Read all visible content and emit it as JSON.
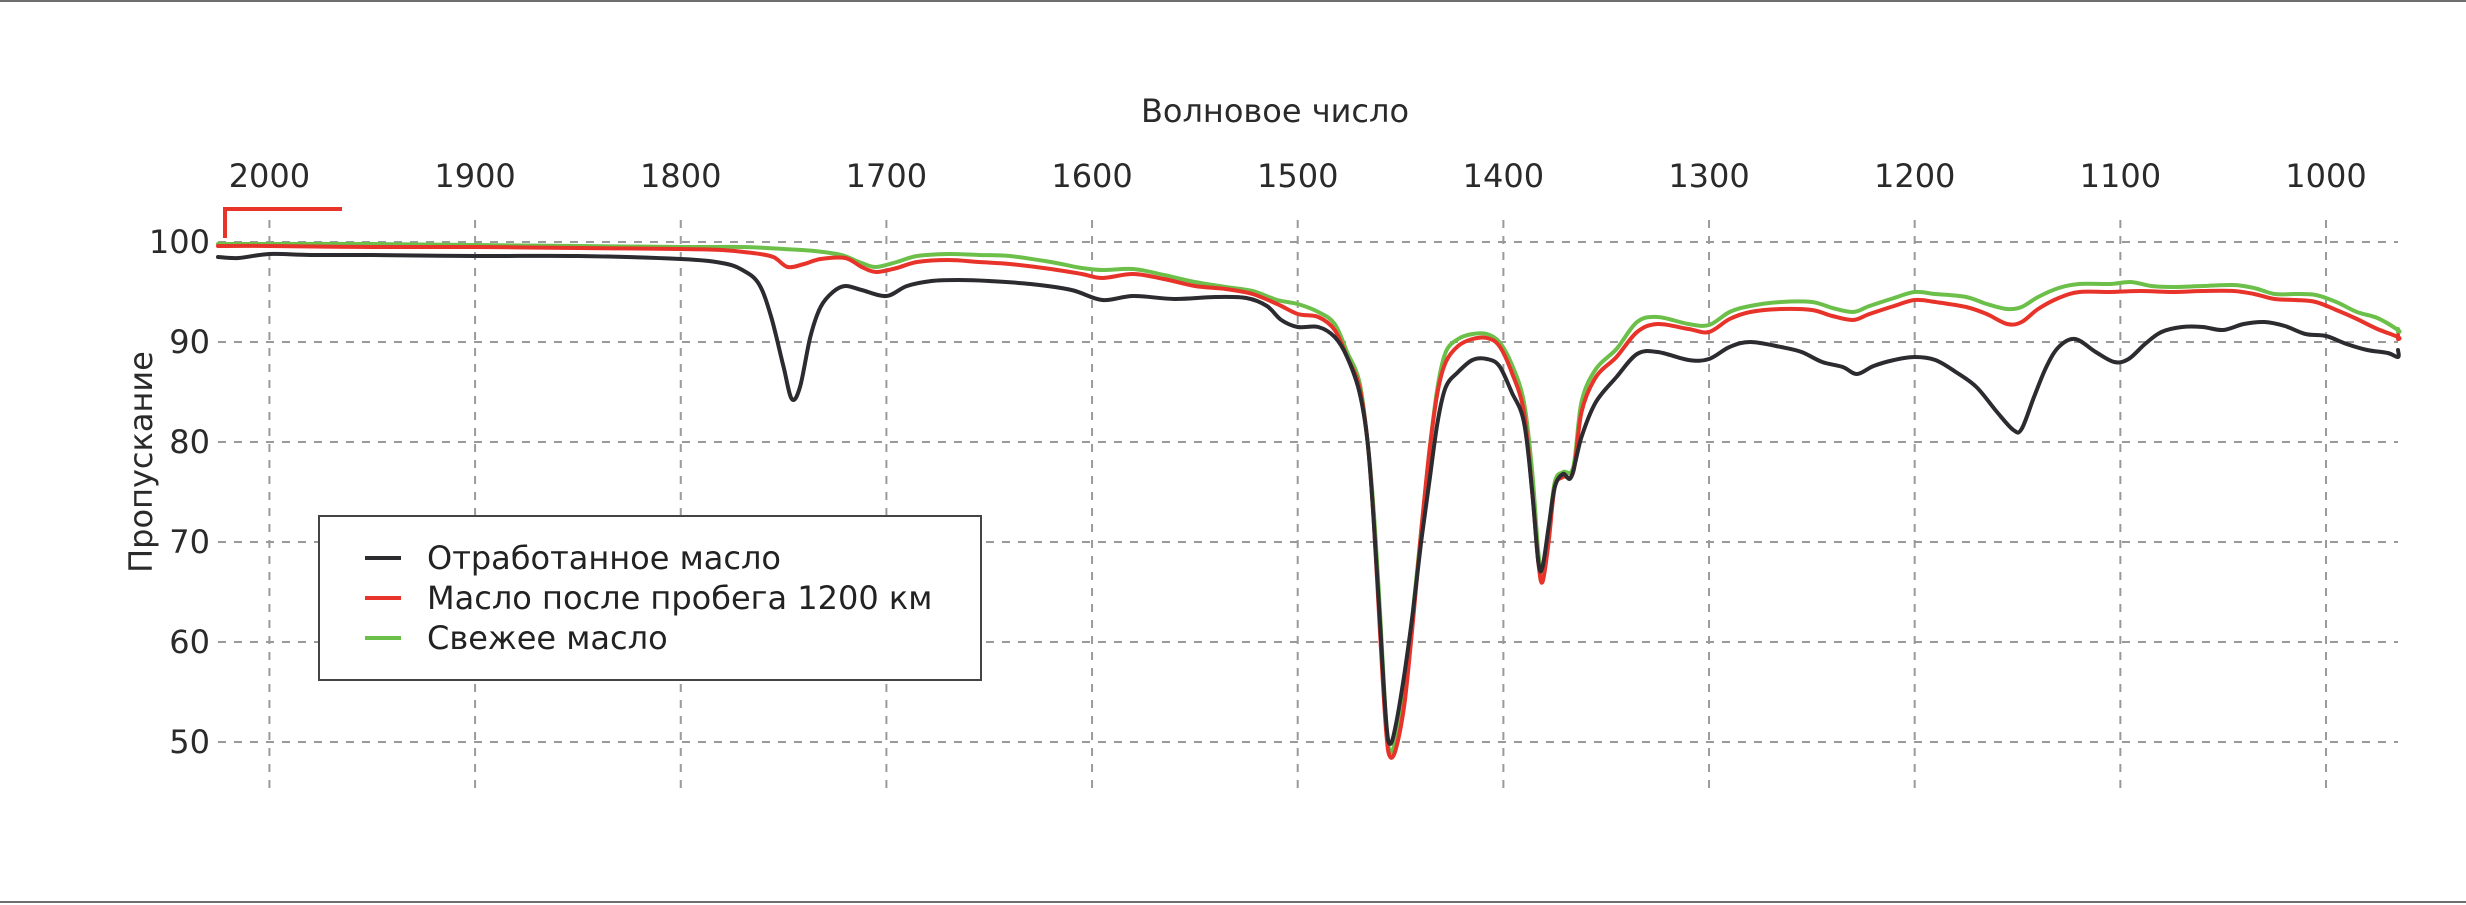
{
  "chart_data": {
    "type": "line",
    "title": "",
    "xlabel": "Волновое число",
    "ylabel": "Пропускание",
    "x_axis_position": "top",
    "x_reversed": true,
    "xlim": [
      2025,
      965
    ],
    "ylim": [
      45,
      105
    ],
    "grid": true,
    "grid_style": "dashed",
    "x_ticks": [
      2000,
      1900,
      1800,
      1700,
      1600,
      1500,
      1400,
      1300,
      1200,
      1100,
      1000
    ],
    "y_ticks": [
      50,
      60,
      70,
      80,
      90,
      100
    ],
    "legend_position": "lower-left",
    "series": [
      {
        "name": "Отработанное масло",
        "color": "#2b2b30",
        "points": [
          [
            2025,
            98.5
          ],
          [
            2015,
            98.4
          ],
          [
            2000,
            98.8
          ],
          [
            1980,
            98.7
          ],
          [
            1950,
            98.7
          ],
          [
            1900,
            98.6
          ],
          [
            1850,
            98.6
          ],
          [
            1800,
            98.3
          ],
          [
            1780,
            97.9
          ],
          [
            1770,
            97.2
          ],
          [
            1762,
            95.8
          ],
          [
            1756,
            92.5
          ],
          [
            1750,
            87.5
          ],
          [
            1746,
            84.3
          ],
          [
            1742,
            85.5
          ],
          [
            1737,
            90.5
          ],
          [
            1732,
            93.5
          ],
          [
            1726,
            95
          ],
          [
            1720,
            95.6
          ],
          [
            1712,
            95.2
          ],
          [
            1700,
            94.6
          ],
          [
            1690,
            95.6
          ],
          [
            1678,
            96.1
          ],
          [
            1665,
            96.2
          ],
          [
            1650,
            96.1
          ],
          [
            1630,
            95.8
          ],
          [
            1610,
            95.2
          ],
          [
            1595,
            94.2
          ],
          [
            1580,
            94.6
          ],
          [
            1560,
            94.3
          ],
          [
            1540,
            94.5
          ],
          [
            1525,
            94.4
          ],
          [
            1515,
            93.6
          ],
          [
            1508,
            92.2
          ],
          [
            1500,
            91.5
          ],
          [
            1490,
            91.5
          ],
          [
            1482,
            90.5
          ],
          [
            1476,
            88.5
          ],
          [
            1470,
            85
          ],
          [
            1466,
            80
          ],
          [
            1463,
            72
          ],
          [
            1460,
            62
          ],
          [
            1457,
            52
          ],
          [
            1455,
            49.8
          ],
          [
            1452,
            52
          ],
          [
            1448,
            57
          ],
          [
            1444,
            63
          ],
          [
            1440,
            70
          ],
          [
            1436,
            76
          ],
          [
            1432,
            82
          ],
          [
            1428,
            85.5
          ],
          [
            1422,
            87
          ],
          [
            1415,
            88.2
          ],
          [
            1408,
            88.3
          ],
          [
            1402,
            87.6
          ],
          [
            1396,
            85
          ],
          [
            1390,
            82
          ],
          [
            1386,
            75
          ],
          [
            1383,
            68
          ],
          [
            1381,
            67.5
          ],
          [
            1378,
            71.5
          ],
          [
            1375,
            75.5
          ],
          [
            1371,
            76.8
          ],
          [
            1367,
            76.5
          ],
          [
            1362,
            80.5
          ],
          [
            1355,
            84
          ],
          [
            1345,
            86.5
          ],
          [
            1335,
            88.8
          ],
          [
            1325,
            89
          ],
          [
            1310,
            88.2
          ],
          [
            1300,
            88.3
          ],
          [
            1290,
            89.5
          ],
          [
            1280,
            90
          ],
          [
            1265,
            89.5
          ],
          [
            1255,
            89
          ],
          [
            1245,
            88
          ],
          [
            1235,
            87.5
          ],
          [
            1228,
            86.8
          ],
          [
            1220,
            87.6
          ],
          [
            1210,
            88.2
          ],
          [
            1200,
            88.5
          ],
          [
            1190,
            88.2
          ],
          [
            1180,
            87
          ],
          [
            1170,
            85.5
          ],
          [
            1160,
            83
          ],
          [
            1152,
            81.2
          ],
          [
            1148,
            81.3
          ],
          [
            1142,
            84.5
          ],
          [
            1136,
            87.5
          ],
          [
            1130,
            89.5
          ],
          [
            1122,
            90.3
          ],
          [
            1112,
            89
          ],
          [
            1103,
            88
          ],
          [
            1096,
            88.3
          ],
          [
            1088,
            89.8
          ],
          [
            1080,
            91
          ],
          [
            1070,
            91.5
          ],
          [
            1060,
            91.5
          ],
          [
            1050,
            91.2
          ],
          [
            1040,
            91.8
          ],
          [
            1030,
            92
          ],
          [
            1020,
            91.6
          ],
          [
            1010,
            90.8
          ],
          [
            1000,
            90.6
          ],
          [
            990,
            89.8
          ],
          [
            980,
            89.2
          ],
          [
            970,
            88.9
          ],
          [
            960,
            88.5
          ],
          [
            950,
            89.2
          ]
        ]
      },
      {
        "name": "Масло после пробега 1200 км",
        "color": "#e8332a",
        "points": [
          [
            2025,
            99.6
          ],
          [
            2000,
            99.6
          ],
          [
            1950,
            99.5
          ],
          [
            1900,
            99.5
          ],
          [
            1850,
            99.4
          ],
          [
            1800,
            99.3
          ],
          [
            1780,
            99.2
          ],
          [
            1765,
            98.9
          ],
          [
            1755,
            98.5
          ],
          [
            1748,
            97.5
          ],
          [
            1740,
            97.8
          ],
          [
            1732,
            98.3
          ],
          [
            1720,
            98.4
          ],
          [
            1712,
            97.5
          ],
          [
            1705,
            97
          ],
          [
            1695,
            97.4
          ],
          [
            1685,
            98
          ],
          [
            1670,
            98.2
          ],
          [
            1655,
            98
          ],
          [
            1640,
            97.8
          ],
          [
            1620,
            97.3
          ],
          [
            1605,
            96.8
          ],
          [
            1595,
            96.4
          ],
          [
            1580,
            96.8
          ],
          [
            1565,
            96.3
          ],
          [
            1550,
            95.6
          ],
          [
            1535,
            95.3
          ],
          [
            1522,
            94.8
          ],
          [
            1510,
            93.8
          ],
          [
            1500,
            92.8
          ],
          [
            1490,
            92.5
          ],
          [
            1482,
            91.2
          ],
          [
            1476,
            88.5
          ],
          [
            1470,
            85.5
          ],
          [
            1466,
            80
          ],
          [
            1463,
            72
          ],
          [
            1460,
            61
          ],
          [
            1457,
            51
          ],
          [
            1455,
            48.5
          ],
          [
            1452,
            49.5
          ],
          [
            1448,
            54
          ],
          [
            1444,
            62
          ],
          [
            1440,
            71
          ],
          [
            1436,
            79
          ],
          [
            1432,
            85
          ],
          [
            1428,
            88
          ],
          [
            1422,
            89.6
          ],
          [
            1415,
            90.3
          ],
          [
            1408,
            90.4
          ],
          [
            1402,
            89.6
          ],
          [
            1396,
            87
          ],
          [
            1390,
            83
          ],
          [
            1386,
            75
          ],
          [
            1383,
            68
          ],
          [
            1381,
            66
          ],
          [
            1378,
            70
          ],
          [
            1375,
            75.5
          ],
          [
            1371,
            76.5
          ],
          [
            1366,
            77
          ],
          [
            1362,
            83
          ],
          [
            1355,
            86.5
          ],
          [
            1345,
            88.5
          ],
          [
            1335,
            91
          ],
          [
            1325,
            91.8
          ],
          [
            1310,
            91.3
          ],
          [
            1300,
            91
          ],
          [
            1290,
            92.3
          ],
          [
            1280,
            93
          ],
          [
            1265,
            93.3
          ],
          [
            1250,
            93.2
          ],
          [
            1240,
            92.6
          ],
          [
            1230,
            92.2
          ],
          [
            1222,
            92.8
          ],
          [
            1210,
            93.6
          ],
          [
            1200,
            94.2
          ],
          [
            1190,
            94
          ],
          [
            1175,
            93.5
          ],
          [
            1165,
            92.8
          ],
          [
            1155,
            91.8
          ],
          [
            1148,
            92
          ],
          [
            1140,
            93.3
          ],
          [
            1130,
            94.4
          ],
          [
            1120,
            95
          ],
          [
            1105,
            95
          ],
          [
            1090,
            95.1
          ],
          [
            1075,
            95
          ],
          [
            1060,
            95.1
          ],
          [
            1045,
            95.1
          ],
          [
            1035,
            94.8
          ],
          [
            1025,
            94.3
          ],
          [
            1015,
            94.2
          ],
          [
            1005,
            94
          ],
          [
            995,
            93.2
          ],
          [
            985,
            92.3
          ],
          [
            975,
            91.3
          ],
          [
            965,
            90.5
          ],
          [
            955,
            90.3
          ],
          [
            950,
            90.7
          ]
        ]
      },
      {
        "name": "Свежее масло",
        "color": "#6cc04a",
        "points": [
          [
            2025,
            99.8
          ],
          [
            2000,
            99.8
          ],
          [
            1950,
            99.8
          ],
          [
            1900,
            99.7
          ],
          [
            1850,
            99.6
          ],
          [
            1800,
            99.5
          ],
          [
            1770,
            99.5
          ],
          [
            1750,
            99.3
          ],
          [
            1735,
            99.1
          ],
          [
            1722,
            98.7
          ],
          [
            1712,
            97.9
          ],
          [
            1705,
            97.5
          ],
          [
            1695,
            98
          ],
          [
            1685,
            98.6
          ],
          [
            1670,
            98.8
          ],
          [
            1655,
            98.7
          ],
          [
            1640,
            98.6
          ],
          [
            1620,
            98
          ],
          [
            1605,
            97.4
          ],
          [
            1595,
            97.2
          ],
          [
            1580,
            97.3
          ],
          [
            1565,
            96.7
          ],
          [
            1550,
            96
          ],
          [
            1535,
            95.5
          ],
          [
            1522,
            95.1
          ],
          [
            1510,
            94.2
          ],
          [
            1500,
            93.8
          ],
          [
            1490,
            93
          ],
          [
            1482,
            91.8
          ],
          [
            1476,
            89
          ],
          [
            1470,
            86
          ],
          [
            1466,
            80
          ],
          [
            1463,
            73
          ],
          [
            1460,
            63
          ],
          [
            1457,
            52
          ],
          [
            1455,
            49
          ],
          [
            1452,
            50.5
          ],
          [
            1448,
            55
          ],
          [
            1444,
            63
          ],
          [
            1440,
            71
          ],
          [
            1436,
            79
          ],
          [
            1432,
            85.5
          ],
          [
            1428,
            89
          ],
          [
            1422,
            90.3
          ],
          [
            1415,
            90.8
          ],
          [
            1408,
            90.8
          ],
          [
            1402,
            90
          ],
          [
            1396,
            87.8
          ],
          [
            1390,
            84
          ],
          [
            1386,
            77
          ],
          [
            1383,
            69
          ],
          [
            1381,
            66.8
          ],
          [
            1378,
            71
          ],
          [
            1375,
            76
          ],
          [
            1371,
            77
          ],
          [
            1366,
            77.5
          ],
          [
            1362,
            84
          ],
          [
            1355,
            87.3
          ],
          [
            1345,
            89.3
          ],
          [
            1335,
            92
          ],
          [
            1325,
            92.5
          ],
          [
            1310,
            91.8
          ],
          [
            1300,
            91.7
          ],
          [
            1290,
            93
          ],
          [
            1280,
            93.6
          ],
          [
            1265,
            94
          ],
          [
            1250,
            94
          ],
          [
            1240,
            93.4
          ],
          [
            1230,
            93
          ],
          [
            1222,
            93.6
          ],
          [
            1210,
            94.4
          ],
          [
            1200,
            95
          ],
          [
            1190,
            94.8
          ],
          [
            1175,
            94.5
          ],
          [
            1165,
            93.8
          ],
          [
            1155,
            93.3
          ],
          [
            1148,
            93.5
          ],
          [
            1140,
            94.5
          ],
          [
            1130,
            95.4
          ],
          [
            1120,
            95.8
          ],
          [
            1105,
            95.8
          ],
          [
            1095,
            96
          ],
          [
            1085,
            95.6
          ],
          [
            1075,
            95.5
          ],
          [
            1060,
            95.6
          ],
          [
            1045,
            95.7
          ],
          [
            1035,
            95.4
          ],
          [
            1025,
            94.8
          ],
          [
            1015,
            94.8
          ],
          [
            1005,
            94.7
          ],
          [
            995,
            94
          ],
          [
            985,
            93
          ],
          [
            975,
            92.4
          ],
          [
            965,
            91.2
          ],
          [
            955,
            91
          ],
          [
            950,
            91.3
          ]
        ]
      }
    ]
  }
}
